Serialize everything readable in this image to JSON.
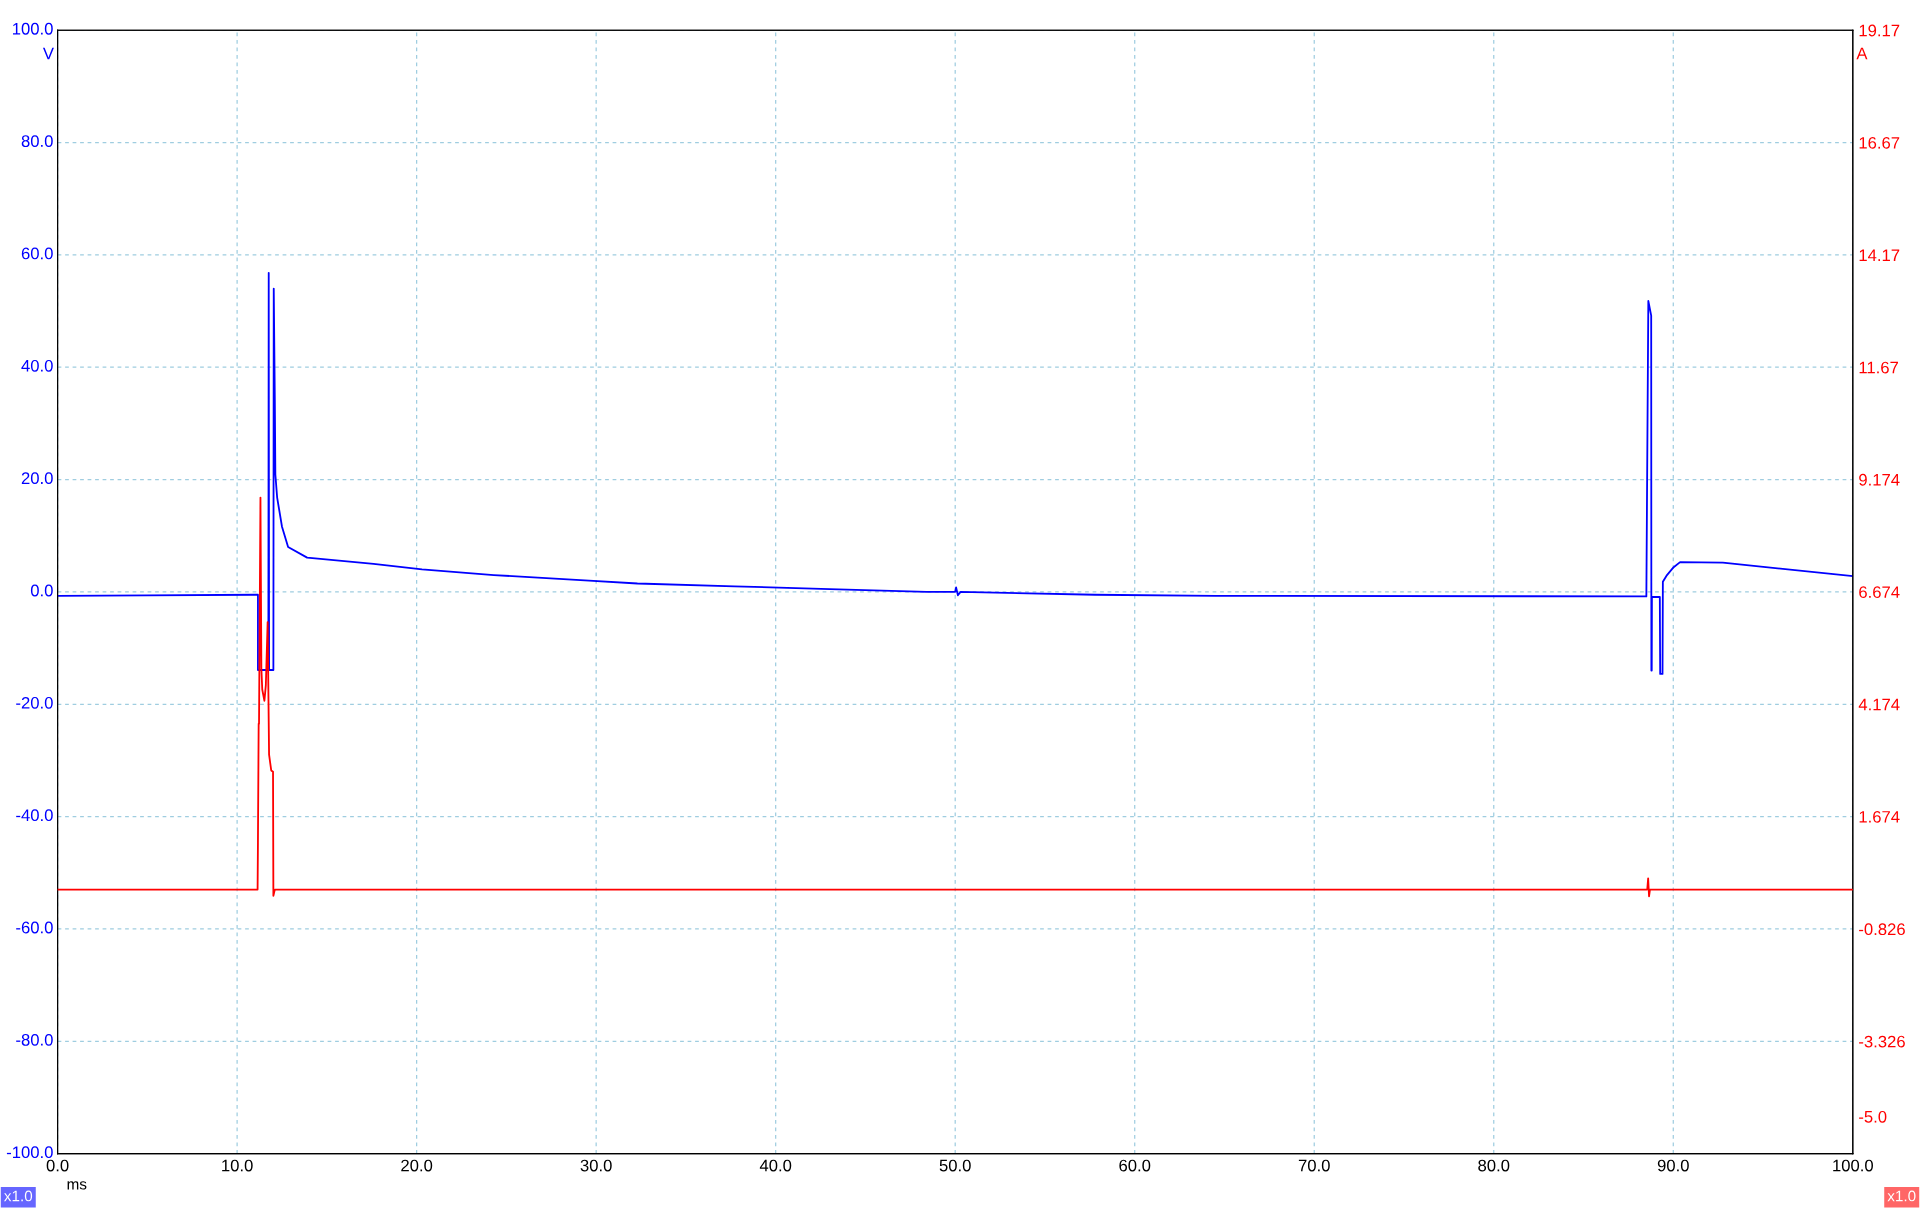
{
  "chart_data": {
    "type": "line",
    "xlabel": "ms",
    "ylabel": "V",
    "y2label": "A",
    "xlim": [
      0,
      100
    ],
    "xticks": [
      {
        "value": 0,
        "label": "0.0"
      },
      {
        "value": 10,
        "label": "10.0"
      },
      {
        "value": 20,
        "label": "20.0"
      },
      {
        "value": 30,
        "label": "30.0"
      },
      {
        "value": 40,
        "label": "40.0"
      },
      {
        "value": 50,
        "label": "50.0"
      },
      {
        "value": 60,
        "label": "60.0"
      },
      {
        "value": 70,
        "label": "70.0"
      },
      {
        "value": 80,
        "label": "80.0"
      },
      {
        "value": 90,
        "label": "90.0"
      },
      {
        "value": 100,
        "label": "100.0"
      }
    ],
    "ylim": [
      -100,
      100
    ],
    "yticks": [
      {
        "value": -100,
        "label": "-100.0"
      },
      {
        "value": -80,
        "label": "-80.0"
      },
      {
        "value": -60,
        "label": "-60.0"
      },
      {
        "value": -40,
        "label": "-40.0"
      },
      {
        "value": -20,
        "label": "-20.0"
      },
      {
        "value": 0,
        "label": "0.0"
      },
      {
        "value": 20,
        "label": "20.0"
      },
      {
        "value": 40,
        "label": "40.0"
      },
      {
        "value": 60,
        "label": "60.0"
      },
      {
        "value": 80,
        "label": "80.0"
      },
      {
        "value": 100,
        "label": "100.0"
      }
    ],
    "y2lim": [
      -5.826,
      19.17
    ],
    "y2ticks": [
      {
        "value": -5.0,
        "label": "-5.0"
      },
      -3.326,
      -0.826,
      1.674,
      4.174,
      6.674,
      9.174,
      11.67,
      14.17,
      16.67,
      19.17
    ],
    "grid": true,
    "marker": "none",
    "line_style": "solid",
    "annotations": [
      "x1.0",
      "x1.0"
    ],
    "series": [
      {
        "color": "#0000ff",
        "x": [
          0,
          5,
          11.16,
          11.16,
          11.74,
          11.76,
          11.78,
          12.02,
          12.04,
          12.1,
          12.13,
          12.23,
          12.5,
          12.84,
          13.9,
          17.6,
          20.3,
          24.3,
          29.6,
          32.3,
          37.7,
          43,
          48.4,
          50.0,
          50.05,
          50.15,
          50.3,
          57.8,
          64.5,
          88.5,
          88.61,
          88.77,
          88.78,
          88.8,
          88.81,
          89.25,
          89.27,
          89.4,
          89.42,
          89.65,
          90.02,
          90.38,
          92.76,
          100
        ],
        "values": [
          -0.7,
          -0.6,
          -0.5,
          -13.9,
          -13.9,
          56.8,
          -13.9,
          -13.9,
          54.0,
          34.2,
          20.9,
          16.8,
          11.6,
          8.0,
          6.1,
          5.0,
          4.0,
          3.0,
          2.0,
          1.5,
          1.0,
          0.5,
          0.0,
          0.0,
          0.8,
          -0.6,
          0.0,
          -0.5,
          -0.7,
          -0.8,
          51.8,
          49.2,
          -14.0,
          -14.0,
          -0.9,
          -0.9,
          -14.6,
          -14.6,
          1.8,
          3.0,
          4.4,
          5.3,
          5.2,
          2.8
        ]
      },
      {
        "color": "#ff0000",
        "axis": "y2",
        "x": [
          0,
          11.14,
          11.16,
          11.2,
          11.22,
          11.3,
          11.35,
          11.4,
          11.52,
          11.6,
          11.7,
          11.78,
          11.9,
          12.0,
          12.02,
          12.1,
          88.55,
          88.6,
          88.65,
          88.7,
          100
        ],
        "values": [
          0.05,
          0.05,
          1.1,
          3.74,
          3.74,
          8.77,
          4.98,
          4.5,
          4.25,
          4.6,
          6.0,
          3.05,
          2.7,
          2.67,
          -0.09,
          0.05,
          0.05,
          0.3,
          -0.1,
          0.05,
          0.05
        ]
      }
    ]
  }
}
